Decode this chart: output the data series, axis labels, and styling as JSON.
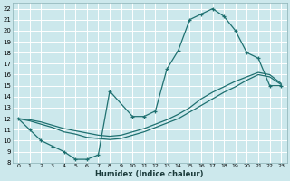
{
  "xlabel": "Humidex (Indice chaleur)",
  "bg_color": "#cce8ec",
  "grid_color": "#ffffff",
  "line_color": "#1e7070",
  "xlim": [
    -0.5,
    23.5
  ],
  "ylim": [
    8,
    22.5
  ],
  "xticks": [
    0,
    1,
    2,
    3,
    4,
    5,
    6,
    7,
    8,
    9,
    10,
    11,
    12,
    13,
    14,
    15,
    16,
    17,
    18,
    19,
    20,
    21,
    22,
    23
  ],
  "yticks": [
    8,
    9,
    10,
    11,
    12,
    13,
    14,
    15,
    16,
    17,
    18,
    19,
    20,
    21,
    22
  ],
  "curve1_x": [
    0,
    1,
    2,
    3,
    4,
    5,
    6,
    7,
    8,
    10,
    11,
    12,
    13,
    14,
    15,
    16,
    17,
    18,
    19,
    20,
    21,
    22,
    23
  ],
  "curve1_y": [
    12,
    11,
    10,
    9.5,
    9,
    8.3,
    8.3,
    8.7,
    14.5,
    12.2,
    12.2,
    12.7,
    16.5,
    18.2,
    21.0,
    21.5,
    22.0,
    21.3,
    20.0,
    18.0,
    17.5,
    15.0,
    15.0
  ],
  "curve2_x": [
    0,
    1,
    2,
    3,
    4,
    5,
    6,
    7,
    8,
    9,
    10,
    11,
    12,
    13,
    14,
    15,
    16,
    17,
    18,
    19,
    20,
    21,
    22,
    23
  ],
  "curve2_y": [
    12.0,
    11.8,
    11.5,
    11.2,
    10.8,
    10.6,
    10.3,
    10.2,
    10.1,
    10.2,
    10.5,
    10.8,
    11.2,
    11.6,
    12.0,
    12.6,
    13.2,
    13.8,
    14.4,
    14.9,
    15.5,
    16.0,
    15.8,
    15.1
  ],
  "curve3_x": [
    0,
    1,
    2,
    3,
    4,
    5,
    6,
    7,
    8,
    9,
    10,
    11,
    12,
    13,
    14,
    15,
    16,
    17,
    18,
    19,
    20,
    21,
    22,
    23
  ],
  "curve3_y": [
    12.0,
    11.9,
    11.7,
    11.4,
    11.1,
    10.9,
    10.7,
    10.5,
    10.4,
    10.5,
    10.8,
    11.1,
    11.5,
    11.9,
    12.4,
    13.0,
    13.8,
    14.4,
    14.9,
    15.4,
    15.8,
    16.2,
    16.0,
    15.2
  ]
}
